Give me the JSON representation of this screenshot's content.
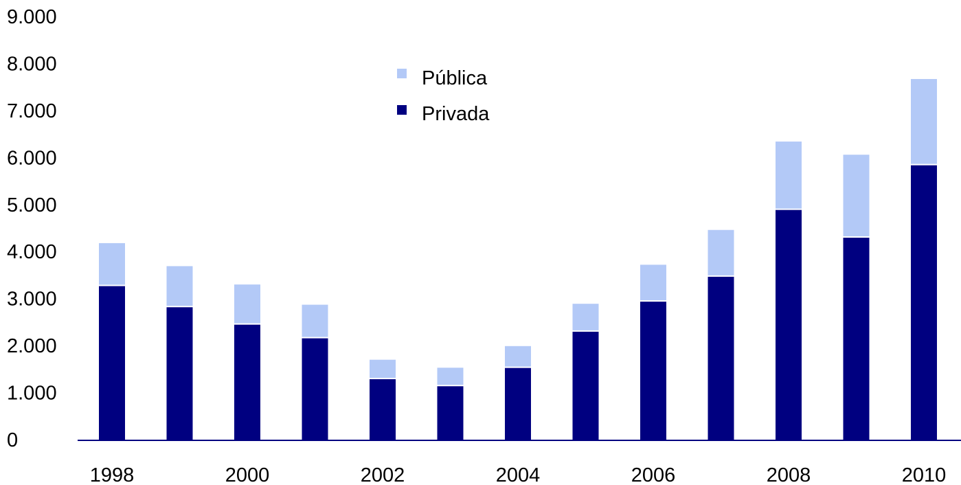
{
  "colors": {
    "publica": "#b3c9f7",
    "privada": "#000080",
    "axis": "#000080"
  },
  "chart_data": {
    "type": "bar",
    "stacked": true,
    "title": "",
    "xlabel": "",
    "ylabel": "",
    "categories": [
      "1998",
      "1999",
      "2000",
      "2001",
      "2002",
      "2003",
      "2004",
      "2005",
      "2006",
      "2007",
      "2008",
      "2009",
      "2010"
    ],
    "x_tick_labels": [
      "1998",
      "2000",
      "2002",
      "2004",
      "2006",
      "2008",
      "2010"
    ],
    "y_tick_labels": [
      "0",
      "1.000",
      "2.000",
      "3.000",
      "4.000",
      "5.000",
      "6.000",
      "7.000",
      "8.000",
      "9.000"
    ],
    "ylim": [
      0,
      9000
    ],
    "grid": false,
    "legend_position": "top-center",
    "series": [
      {
        "name": "Privada",
        "values": [
          3280,
          2830,
          2460,
          2170,
          1300,
          1150,
          1540,
          2310,
          2950,
          3480,
          4900,
          4310,
          5850
        ]
      },
      {
        "name": "Pública",
        "values": [
          900,
          860,
          840,
          700,
          400,
          380,
          450,
          580,
          770,
          980,
          1440,
          1750,
          1820
        ]
      }
    ],
    "legend": [
      {
        "label": "Pública",
        "series": "Pública"
      },
      {
        "label": "Privada",
        "series": "Privada"
      }
    ]
  }
}
